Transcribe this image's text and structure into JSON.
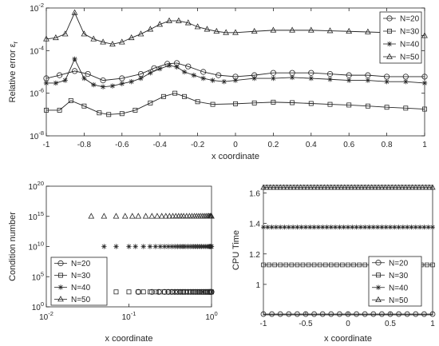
{
  "chart_data": [
    {
      "type": "line",
      "xlabel": "x coordinate",
      "ylabel_main": "Relative error",
      "ylabel_sub": "r",
      "xlim": [
        -1,
        1
      ],
      "ylim": [
        1e-08,
        0.01
      ],
      "yscale": "log",
      "xticks": [
        "-1",
        "-0.8",
        "-0.6",
        "-0.4",
        "-0.2",
        "0",
        "0.2",
        "0.4",
        "0.6",
        "0.8",
        "1"
      ],
      "yticks": [
        {
          "base": "10",
          "exp": "-8"
        },
        {
          "base": "10",
          "exp": "-6"
        },
        {
          "base": "10",
          "exp": "-4"
        },
        {
          "base": "10",
          "exp": "-2"
        }
      ],
      "legend": "top-right",
      "series": [
        {
          "name": "N=20",
          "marker": "circle",
          "x": [
            -1,
            -0.93,
            -0.85,
            -0.78,
            -0.7,
            -0.6,
            -0.5,
            -0.43,
            -0.36,
            -0.31,
            -0.25,
            -0.17,
            -0.09,
            0,
            0.1,
            0.2,
            0.3,
            0.4,
            0.5,
            0.6,
            0.7,
            0.8,
            0.9,
            1
          ],
          "y": [
            5e-06,
            7e-06,
            1.1e-05,
            8e-06,
            4e-06,
            5e-06,
            8e-06,
            1.5e-05,
            2.4e-05,
            2.6e-05,
            1.8e-05,
            1e-05,
            7e-06,
            6e-06,
            7e-06,
            9e-06,
            9e-06,
            9e-06,
            8e-06,
            7e-06,
            7e-06,
            6e-06,
            6e-06,
            6e-06
          ]
        },
        {
          "name": "N=30",
          "marker": "square",
          "x": [
            -1,
            -0.93,
            -0.87,
            -0.8,
            -0.72,
            -0.67,
            -0.6,
            -0.53,
            -0.45,
            -0.38,
            -0.32,
            -0.27,
            -0.2,
            -0.12,
            0,
            0.1,
            0.2,
            0.3,
            0.4,
            0.5,
            0.6,
            0.7,
            0.8,
            0.9,
            1
          ],
          "y": [
            1.6e-07,
            1.6e-07,
            4.5e-07,
            2.5e-07,
            1.2e-07,
            1e-07,
            1.1e-07,
            1.6e-07,
            3.5e-07,
            7e-07,
            1e-06,
            7e-07,
            4e-07,
            3e-07,
            3.2e-07,
            3.5e-07,
            3.8e-07,
            3.6e-07,
            3.3e-07,
            3e-07,
            2.8e-07,
            2.5e-07,
            2.2e-07,
            2e-07,
            1.8e-07
          ]
        },
        {
          "name": "N=40",
          "marker": "star",
          "x": [
            -1,
            -0.95,
            -0.9,
            -0.85,
            -0.8,
            -0.75,
            -0.7,
            -0.65,
            -0.6,
            -0.55,
            -0.5,
            -0.45,
            -0.4,
            -0.35,
            -0.31,
            -0.27,
            -0.22,
            -0.17,
            -0.12,
            -0.06,
            0,
            0.1,
            0.2,
            0.3,
            0.4,
            0.5,
            0.6,
            0.7,
            0.8,
            0.9,
            1
          ],
          "y": [
            3e-06,
            3e-06,
            4e-06,
            4e-05,
            5e-06,
            2.5e-06,
            2e-06,
            2.2e-06,
            2.8e-06,
            3.5e-06,
            5e-06,
            9e-06,
            1.4e-05,
            2e-05,
            1.7e-05,
            1e-05,
            7e-06,
            5e-06,
            4e-06,
            3.5e-06,
            4e-06,
            5e-06,
            5e-06,
            5.5e-06,
            5e-06,
            4.5e-06,
            4e-06,
            4e-06,
            3.5e-06,
            3.5e-06,
            3e-06
          ]
        },
        {
          "name": "N=50",
          "marker": "triangle",
          "x": [
            -1,
            -0.95,
            -0.9,
            -0.85,
            -0.8,
            -0.75,
            -0.7,
            -0.65,
            -0.6,
            -0.55,
            -0.5,
            -0.45,
            -0.4,
            -0.35,
            -0.3,
            -0.25,
            -0.2,
            -0.15,
            -0.1,
            -0.05,
            0,
            0.1,
            0.2,
            0.3,
            0.4,
            0.5,
            0.6,
            0.7,
            0.8,
            0.9,
            1
          ],
          "y": [
            0.00035,
            0.0004,
            0.0006,
            0.006,
            0.0006,
            0.00035,
            0.00025,
            0.0002,
            0.00025,
            0.0004,
            0.0006,
            0.001,
            0.0017,
            0.0025,
            0.0025,
            0.002,
            0.0013,
            0.001,
            0.0008,
            0.0007,
            0.0007,
            0.0008,
            0.0009,
            0.0009,
            0.0009,
            0.00085,
            0.0008,
            0.00075,
            0.0007,
            0.0006,
            0.0005
          ]
        }
      ]
    },
    {
      "type": "scatter",
      "xlabel": "x coordinate",
      "ylabel": "Condition number",
      "xscale": "log",
      "yscale": "log",
      "xlim": [
        0.01,
        1
      ],
      "ylim": [
        1,
        1e+20
      ],
      "xticks": [
        {
          "base": "10",
          "exp": "-2"
        },
        {
          "base": "10",
          "exp": "-1"
        },
        {
          "base": "10",
          "exp": "0"
        }
      ],
      "yticks": [
        {
          "base": "10",
          "exp": "0"
        },
        {
          "base": "10",
          "exp": "5"
        },
        {
          "base": "10",
          "exp": "10"
        },
        {
          "base": "10",
          "exp": "15"
        },
        {
          "base": "10",
          "exp": "20"
        }
      ],
      "legend": "bottom-left",
      "series": [
        {
          "name": "N=20",
          "marker": "circle",
          "value": 300,
          "x": [
            0.13,
            0.19,
            0.23,
            0.27,
            0.3,
            0.33,
            0.36,
            0.39,
            0.42,
            0.45,
            0.48,
            0.52,
            0.56,
            0.6,
            0.64,
            0.68,
            0.72,
            0.76,
            0.8,
            0.84,
            0.88,
            0.92,
            0.95,
            0.97,
            0.99,
            1.0
          ]
        },
        {
          "name": "N=30",
          "marker": "square",
          "value": 300,
          "x": [
            0.05,
            0.07,
            0.1,
            0.13,
            0.15,
            0.18,
            0.21,
            0.24,
            0.27,
            0.3,
            0.34,
            0.38,
            0.42,
            0.46,
            0.5,
            0.55,
            0.6,
            0.65,
            0.7,
            0.75,
            0.8,
            0.85,
            0.9,
            0.95,
            1.0
          ]
        },
        {
          "name": "N=40",
          "marker": "star",
          "value": 10000000000.0,
          "x": [
            0.05,
            0.07,
            0.1,
            0.12,
            0.15,
            0.18,
            0.21,
            0.24,
            0.27,
            0.3,
            0.33,
            0.36,
            0.39,
            0.42,
            0.45,
            0.48,
            0.52,
            0.56,
            0.6,
            0.64,
            0.68,
            0.72,
            0.76,
            0.8,
            0.84,
            0.88,
            0.92,
            0.95,
            0.97,
            0.99,
            1.0
          ]
        },
        {
          "name": "N=50",
          "marker": "triangle",
          "value": 1000000000000000.0,
          "x": [
            0.035,
            0.05,
            0.07,
            0.09,
            0.11,
            0.13,
            0.16,
            0.19,
            0.22,
            0.25,
            0.28,
            0.31,
            0.34,
            0.37,
            0.4,
            0.43,
            0.46,
            0.5,
            0.54,
            0.58,
            0.62,
            0.66,
            0.7,
            0.74,
            0.78,
            0.82,
            0.86,
            0.9,
            0.93,
            0.96,
            0.98,
            1.0
          ]
        }
      ]
    },
    {
      "type": "line",
      "xlabel": "x coordinate",
      "ylabel": "CPU Time",
      "xlim": [
        -1,
        1
      ],
      "ylim": [
        0.8,
        1.65
      ],
      "xticks": [
        "-1",
        "-0.5",
        "0",
        "0.5",
        "1"
      ],
      "yticks": [
        "1",
        "1.2",
        "1.4",
        "1.6"
      ],
      "legend": "bottom-right",
      "series": [
        {
          "name": "N=20",
          "marker": "circle",
          "value": 0.805,
          "count": 21
        },
        {
          "name": "N=30",
          "marker": "square",
          "value": 1.128,
          "count": 31
        },
        {
          "name": "N=40",
          "marker": "star",
          "value": 1.376,
          "count": 41
        },
        {
          "name": "N=50",
          "marker": "triangle",
          "value": 1.636,
          "count": 51
        }
      ]
    }
  ]
}
